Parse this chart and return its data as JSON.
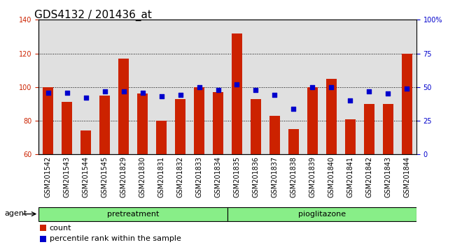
{
  "title": "GDS4132 / 201436_at",
  "categories": [
    "GSM201542",
    "GSM201543",
    "GSM201544",
    "GSM201545",
    "GSM201829",
    "GSM201830",
    "GSM201831",
    "GSM201832",
    "GSM201833",
    "GSM201834",
    "GSM201835",
    "GSM201836",
    "GSM201837",
    "GSM201838",
    "GSM201839",
    "GSM201840",
    "GSM201841",
    "GSM201842",
    "GSM201843",
    "GSM201844"
  ],
  "bar_values": [
    100,
    91,
    74,
    95,
    117,
    96,
    80,
    93,
    100,
    97,
    132,
    93,
    83,
    75,
    100,
    105,
    81,
    90,
    90,
    120
  ],
  "percentile_values": [
    46,
    46,
    42,
    47,
    47,
    46,
    43,
    44,
    50,
    48,
    52,
    48,
    44,
    34,
    50,
    50,
    40,
    47,
    45,
    49
  ],
  "bar_color": "#CC2200",
  "dot_color": "#0000CC",
  "ymin": 60,
  "ymax": 140,
  "yticks_left": [
    60,
    80,
    100,
    120,
    140
  ],
  "yticks_right": [
    0,
    25,
    50,
    75,
    100
  ],
  "grid_values": [
    80,
    100,
    120
  ],
  "pretreatment_count": 10,
  "pioglitazone_count": 10,
  "agent_label": "agent",
  "pretreatment_label": "pretreatment",
  "pioglitazone_label": "pioglitazone",
  "legend_count_label": "count",
  "legend_percentile_label": "percentile rank within the sample",
  "plot_bg_color": "#E0E0E0",
  "green_color": "#88EE88",
  "right_axis_color": "#0000CC",
  "left_axis_color": "#CC2200",
  "title_fontsize": 11,
  "tick_fontsize": 7,
  "bar_width": 0.55
}
